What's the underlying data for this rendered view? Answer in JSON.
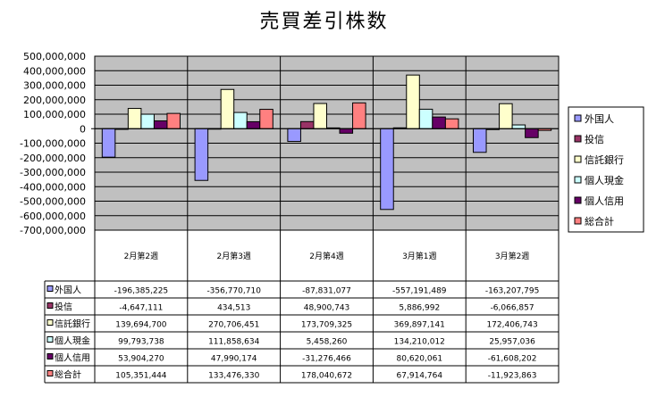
{
  "title": "売買差引株数",
  "colors": {
    "plot_bg": "#c0c0c0",
    "grid": "#000000"
  },
  "chart_data": {
    "type": "bar",
    "title": "売買差引株数",
    "categories": [
      "2月第2週",
      "2月第3週",
      "2月第4週",
      "3月第1週",
      "3月第2週"
    ],
    "ylim": [
      -700000000,
      500000000
    ],
    "ytick_step": 100000000,
    "ytick_labels": [
      "500,000,000",
      "400,000,000",
      "300,000,000",
      "200,000,000",
      "100,000,000",
      "0",
      "-100,000,000",
      "-200,000,000",
      "-300,000,000",
      "-400,000,000",
      "-500,000,000",
      "-600,000,000",
      "-700,000,000"
    ],
    "grid": true,
    "legend_position": "right",
    "series": [
      {
        "name": "外国人",
        "color": "#9999ff",
        "values": [
          -196385225,
          -356770710,
          -87831077,
          -557191489,
          -163207795
        ],
        "labels": [
          "-196,385,225",
          "-356,770,710",
          "-87,831,077",
          "-557,191,489",
          "-163,207,795"
        ]
      },
      {
        "name": "投信",
        "color": "#993366",
        "values": [
          -4647111,
          434513,
          48900743,
          5886992,
          -6066857
        ],
        "labels": [
          "-4,647,111",
          "434,513",
          "48,900,743",
          "5,886,992",
          "-6,066,857"
        ]
      },
      {
        "name": "信託銀行",
        "color": "#ffffcc",
        "values": [
          139694700,
          270706451,
          173709325,
          369897141,
          172406743
        ],
        "labels": [
          "139,694,700",
          "270,706,451",
          "173,709,325",
          "369,897,141",
          "172,406,743"
        ]
      },
      {
        "name": "個人現金",
        "color": "#ccffff",
        "values": [
          99793738,
          111858634,
          5458260,
          134210012,
          25957036
        ],
        "labels": [
          "99,793,738",
          "111,858,634",
          "5,458,260",
          "134,210,012",
          "25,957,036"
        ]
      },
      {
        "name": "個人信用",
        "color": "#660066",
        "values": [
          53904270,
          47990174,
          -31276466,
          80620061,
          -61608202
        ],
        "labels": [
          "53,904,270",
          "47,990,174",
          "-31,276,466",
          "80,620,061",
          "-61,608,202"
        ]
      },
      {
        "name": "総合計",
        "color": "#ff8080",
        "values": [
          105351444,
          133476330,
          178040672,
          67914764,
          -11923863
        ],
        "labels": [
          "105,351,444",
          "133,476,330",
          "178,040,672",
          "67,914,764",
          "-11,923,863"
        ]
      }
    ]
  }
}
